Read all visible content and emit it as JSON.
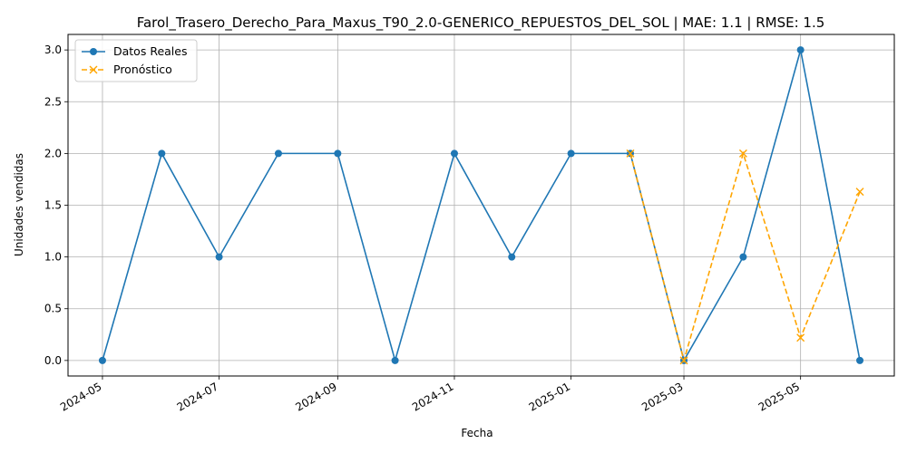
{
  "chart_data": {
    "type": "line",
    "title": "Farol_Trasero_Derecho_Para_Maxus_T90_2.0-GENERICO_REPUESTOS_DEL_SOL | MAE: 1.1 | RMSE: 1.5",
    "xlabel": "Fecha",
    "ylabel": "Unidades vendidas",
    "x_ticks": [
      "2024-05",
      "2024-07",
      "2024-09",
      "2024-11",
      "2025-01",
      "2025-03",
      "2025-05"
    ],
    "y_ticks": [
      "0.0",
      "0.5",
      "1.0",
      "1.5",
      "2.0",
      "2.5",
      "3.0"
    ],
    "xlim": [
      "2024-04-13",
      "2025-06-19"
    ],
    "ylim": [
      -0.15,
      3.15
    ],
    "grid": true,
    "legend_position": "upper left",
    "series": [
      {
        "name": "Datos Reales",
        "color": "#1f77b4",
        "linestyle": "solid",
        "marker": "circle",
        "x": [
          "2024-05-01",
          "2024-06-01",
          "2024-07-01",
          "2024-08-01",
          "2024-09-01",
          "2024-10-01",
          "2024-11-01",
          "2024-12-01",
          "2025-01-01",
          "2025-02-01",
          "2025-03-01",
          "2025-04-01",
          "2025-05-01",
          "2025-06-01"
        ],
        "values": [
          0,
          2,
          1,
          2,
          2,
          0,
          2,
          1,
          2,
          2,
          0,
          1,
          3,
          0
        ]
      },
      {
        "name": "Pronóstico",
        "color": "#ffa500",
        "linestyle": "dashed",
        "marker": "x",
        "x": [
          "2025-02-01",
          "2025-03-01",
          "2025-04-01",
          "2025-05-01",
          "2025-06-01"
        ],
        "values": [
          2.0,
          0.0,
          2.0,
          0.22,
          1.63
        ]
      }
    ]
  }
}
